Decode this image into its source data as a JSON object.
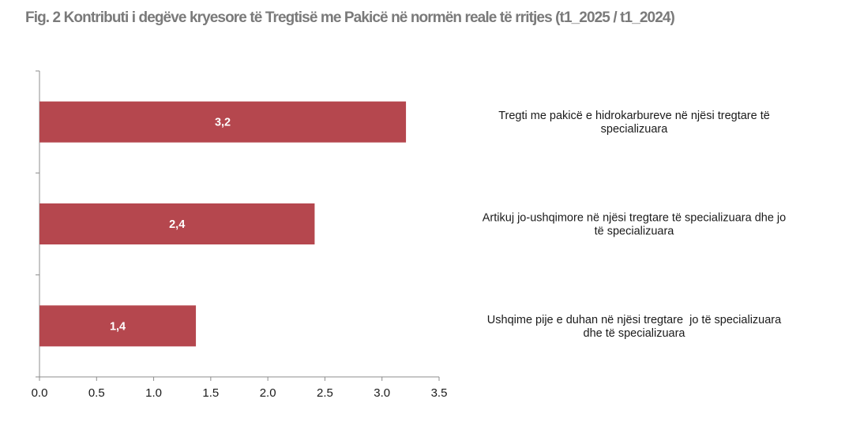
{
  "title": "Fig. 2 Kontributi i degëve kryesore të Tregtisë me Pakicë në normën reale të rritjes (t1_2025 / t1_2024)",
  "colors": {
    "bar": "#b5474e",
    "axis": "#8c8c8c",
    "title": "#7a7a7a"
  },
  "chart_data": {
    "type": "bar",
    "orientation": "horizontal",
    "categories": [
      [
        "Tregti me pakicë e hidrokarbureve në njësi tregtare të",
        "specializuara"
      ],
      [
        "Artikuj jo-ushqimore në njësi tregtare të specializuara dhe jo",
        "të specializuara"
      ],
      [
        "Ushqime pije e duhan në njësi tregtare  jo të specializuara",
        "dhe të specializuara"
      ]
    ],
    "values": [
      3.21,
      2.41,
      1.37
    ],
    "data_labels": [
      "3,2",
      "2,4",
      "1,4"
    ],
    "xlim": [
      0,
      3.5
    ],
    "xticks": [
      "0.0",
      "0.5",
      "1.0",
      "1.5",
      "2.0",
      "2.5",
      "3.0",
      "3.5"
    ],
    "xlabel": "",
    "ylabel": "",
    "grid": false,
    "legend": "none"
  }
}
